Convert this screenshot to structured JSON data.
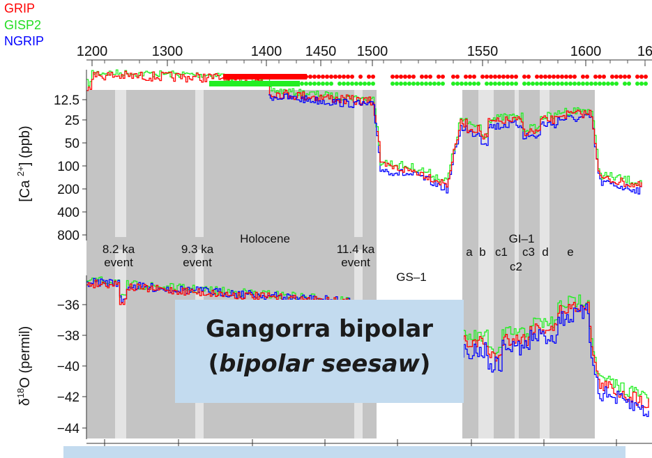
{
  "legend": [
    {
      "name": "GRIP",
      "color": "#ff0000"
    },
    {
      "name": "GISP2",
      "color": "#22ee22"
    },
    {
      "name": "NGRIP",
      "color": "#0000ff"
    }
  ],
  "callout": {
    "line1": "Gangorra bipolar",
    "line2_open": "(",
    "line2_italic": "bipolar seesaw",
    "line2_close": ")"
  },
  "chart_data": {
    "type": "line",
    "top_axis_ticks": [
      "1200",
      "1300",
      "1400",
      "1450",
      "1500",
      "1550",
      "1600",
      "16"
    ],
    "series_colors": {
      "GRIP": "#ff0000",
      "GISP2": "#22ee22",
      "NGRIP": "#0000ff"
    },
    "shaded_periods": [
      "Holocene",
      "GI-1"
    ],
    "event_labels": [
      {
        "l1": "8.2 ka",
        "l2": "event"
      },
      {
        "l1": "9.3 ka",
        "l2": "event"
      },
      {
        "l1": "11.4 ka",
        "l2": "event"
      }
    ],
    "period_labels": [
      "Holocene",
      "GS–1",
      "GI–1"
    ],
    "substage_labels": [
      "a",
      "b",
      "c1",
      "c3",
      "d",
      "e",
      "c2"
    ],
    "ca_panel": {
      "ylabel_pre": "[Ca ",
      "ylabel_sup": "2+",
      "ylabel_post": "] (ppb)",
      "ticks": [
        "12.5",
        "25",
        "50",
        "100",
        "200",
        "400",
        "800"
      ],
      "scale": "log"
    },
    "d18o_panel": {
      "ylabel_pre": "δ",
      "ylabel_sup": "18",
      "ylabel_post": "O (permil)",
      "ticks": [
        "-36",
        "-38",
        "-40",
        "-42",
        "-44"
      ]
    }
  }
}
